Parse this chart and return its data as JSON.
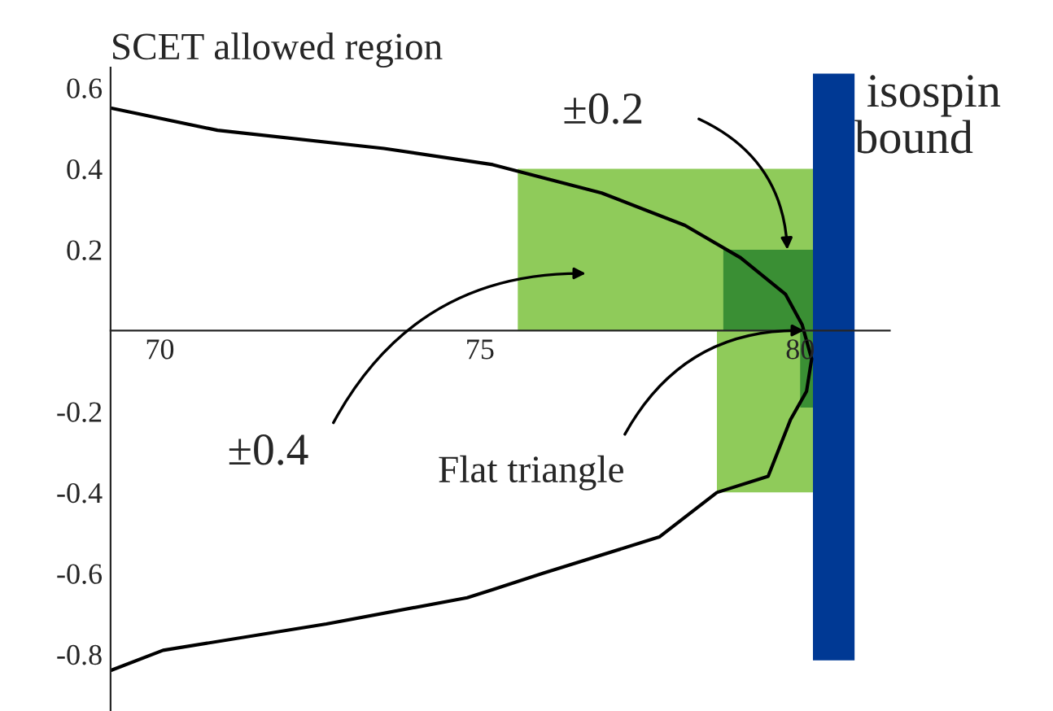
{
  "chart_data": {
    "type": "area",
    "xlim": [
      69.23,
      81.4
    ],
    "ylim": [
      -0.94,
      0.65
    ],
    "xticks": [
      70,
      75,
      80
    ],
    "yticks": [
      -0.8,
      -0.6,
      -0.4,
      -0.2,
      0.2,
      0.4,
      0.6
    ],
    "series": [
      {
        "color": "#8fcb5a",
        "x": [
          75.59,
          80.2
        ],
        "values": [
          0.4,
          0.4
        ]
      },
      {
        "color": "#8fcb5a",
        "x": [
          78.7,
          80.2
        ],
        "values": [
          -0.4,
          -0.4
        ]
      },
      {
        "color": "#3a8f34",
        "x": [
          78.8,
          80.2
        ],
        "values": [
          0.2,
          0.2
        ]
      },
      {
        "color": "#3a8f34",
        "x": [
          80.0,
          80.2
        ],
        "values": [
          -0.19,
          -0.19
        ]
      },
      {
        "name": "isospin bound",
        "color": "#003994",
        "x": [
          80.2,
          80.85
        ],
        "values": [
          0.635,
          0.635
        ]
      },
      {
        "color": "#003994",
        "x": [
          80.2,
          80.85
        ],
        "values": [
          -0.815,
          -0.815
        ]
      },
      {
        "type": "line",
        "name": "SCET allowed region",
        "color": "#000000",
        "x": [
          69.23,
          70.9,
          73.5,
          75.2,
          76.9,
          78.2,
          79.07,
          79.77,
          80.03,
          80.18,
          80.1,
          79.85,
          79.5,
          78.7,
          77.8,
          75.98,
          75.2,
          74.8,
          72.6,
          70.05,
          69.23
        ],
        "values": [
          0.55,
          0.495,
          0.45,
          0.41,
          0.34,
          0.26,
          0.18,
          0.09,
          0.015,
          -0.07,
          -0.15,
          -0.22,
          -0.36,
          -0.4,
          -0.51,
          -0.6,
          -0.64,
          -0.66,
          -0.725,
          -0.79,
          -0.84
        ]
      }
    ],
    "annotations": [
      {
        "text": "±0.2",
        "x": 79.8,
        "y": 0.2
      },
      "±0.4",
      {
        "text": "Flat triangle",
        "x": 80.06,
        "y": 0.0
      }
    ]
  }
}
